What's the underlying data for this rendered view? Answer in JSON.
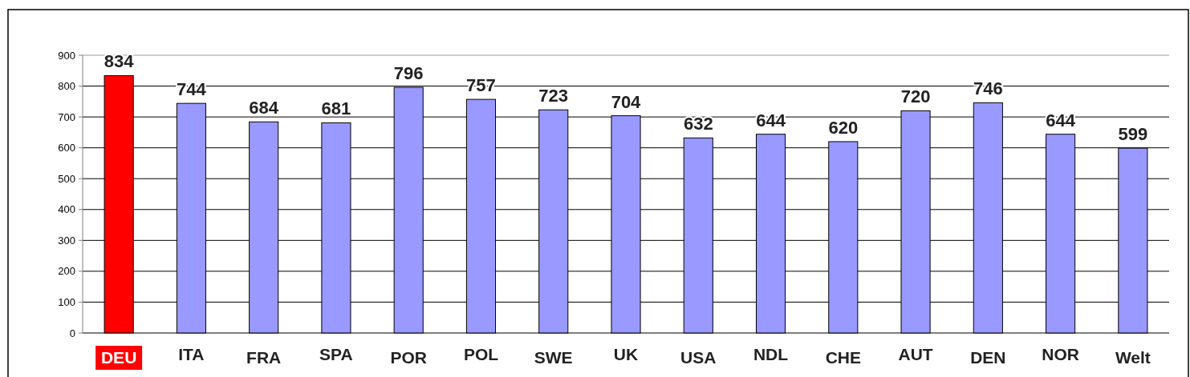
{
  "chart_data": {
    "type": "bar",
    "categories": [
      "DEU",
      "ITA",
      "FRA",
      "SPA",
      "POR",
      "POL",
      "SWE",
      "UK",
      "USA",
      "NDL",
      "CHE",
      "AUT",
      "DEN",
      "NOR",
      "Welt"
    ],
    "values": [
      834,
      744,
      684,
      681,
      796,
      757,
      723,
      704,
      632,
      644,
      620,
      720,
      746,
      644,
      599
    ],
    "colors": [
      "#ff0000",
      "#9999ff",
      "#9999ff",
      "#9999ff",
      "#9999ff",
      "#9999ff",
      "#9999ff",
      "#9999ff",
      "#9999ff",
      "#9999ff",
      "#9999ff",
      "#9999ff",
      "#9999ff",
      "#9999ff",
      "#9999ff"
    ],
    "ylim": [
      0,
      900
    ],
    "yticks": [
      0,
      100,
      200,
      300,
      400,
      500,
      600,
      700,
      800,
      900
    ],
    "grid": "y",
    "data_labels": true
  }
}
